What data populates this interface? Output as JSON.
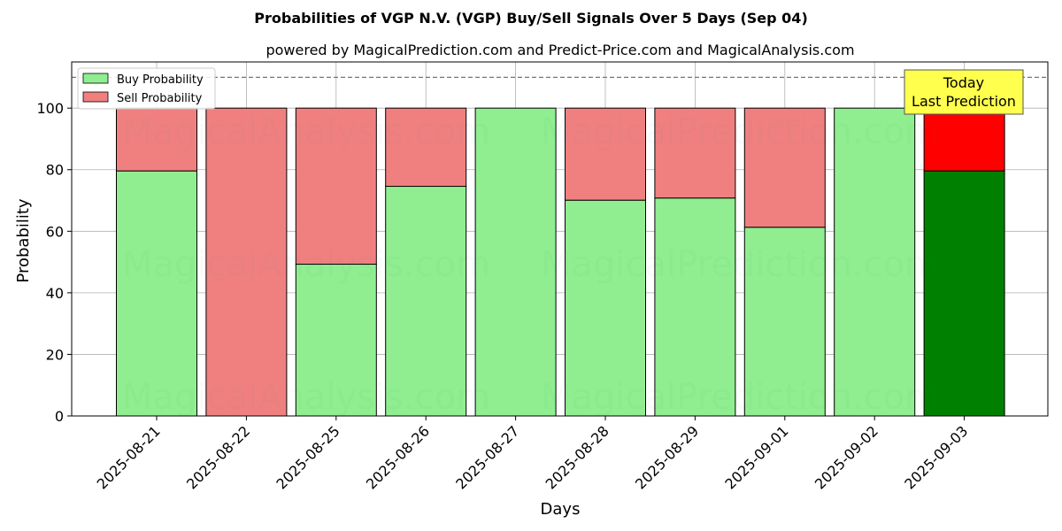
{
  "chart_data": {
    "type": "bar",
    "stacked": true,
    "title": "Probabilities of VGP N.V. (VGP) Buy/Sell Signals Over 5 Days (Sep 04)",
    "subtitle": "powered by MagicalPrediction.com and Predict-Price.com and MagicalAnalysis.com",
    "xlabel": "Days",
    "ylabel": "Probability",
    "ylim": [
      0,
      115
    ],
    "yticks": [
      0,
      20,
      40,
      60,
      80,
      100
    ],
    "categories": [
      "2025-08-21",
      "2025-08-22",
      "2025-08-25",
      "2025-08-26",
      "2025-08-27",
      "2025-08-28",
      "2025-08-29",
      "2025-09-01",
      "2025-09-02",
      "2025-09-03"
    ],
    "series": [
      {
        "name": "Buy Probability",
        "values": [
          79.6,
          0,
          49.3,
          74.6,
          100,
          70.1,
          70.8,
          61.3,
          100,
          79.6
        ],
        "color": "#90ee90",
        "highlight_color": "#008000"
      },
      {
        "name": "Sell Probability",
        "values": [
          20.4,
          100,
          50.7,
          25.4,
          0,
          29.9,
          29.2,
          38.7,
          0,
          20.4
        ],
        "color": "#f08080",
        "highlight_color": "#ff0000"
      }
    ],
    "highlight_index": 9,
    "reference_line": {
      "y": 110,
      "style": "dashed"
    },
    "annotation": {
      "line1": "Today",
      "line2": "Last Prediction",
      "background": "#ffff4d"
    },
    "legend_position": "top-left",
    "grid": true,
    "watermarks": [
      "MagicalAnalysis.com",
      "MagicalPrediction.com"
    ]
  }
}
